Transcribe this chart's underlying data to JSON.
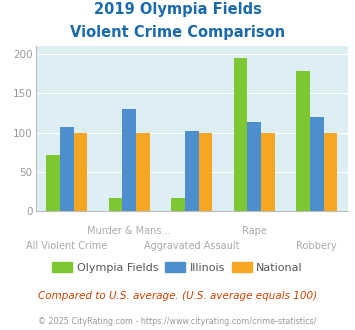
{
  "title_line1": "2019 Olympia Fields",
  "title_line2": "Violent Crime Comparison",
  "categories": [
    "All Violent Crime",
    "Murder & Mans...",
    "Aggravated Assault",
    "Rape",
    "Robbery"
  ],
  "cat_row1": [
    "",
    "Murder & Mans...",
    "",
    "Rape",
    ""
  ],
  "cat_row2": [
    "All Violent Crime",
    "",
    "Aggravated Assault",
    "",
    "Robbery"
  ],
  "series": {
    "Olympia Fields": [
      72,
      17,
      17,
      195,
      178
    ],
    "Illinois": [
      107,
      130,
      102,
      113,
      120
    ],
    "National": [
      100,
      100,
      100,
      100,
      100
    ]
  },
  "colors": {
    "Olympia Fields": "#7dc832",
    "Illinois": "#4d8fcc",
    "National": "#f5a623"
  },
  "ylim": [
    0,
    210
  ],
  "yticks": [
    0,
    50,
    100,
    150,
    200
  ],
  "background_color": "#ddeef5",
  "title_color": "#1a6aad",
  "label_color": "#aaaaaa",
  "subtitle_text": "Compared to U.S. average. (U.S. average equals 100)",
  "subtitle_color": "#cc4400",
  "footer_text": "© 2025 CityRating.com - https://www.cityrating.com/crime-statistics/",
  "footer_color": "#999999",
  "bar_width": 0.22
}
